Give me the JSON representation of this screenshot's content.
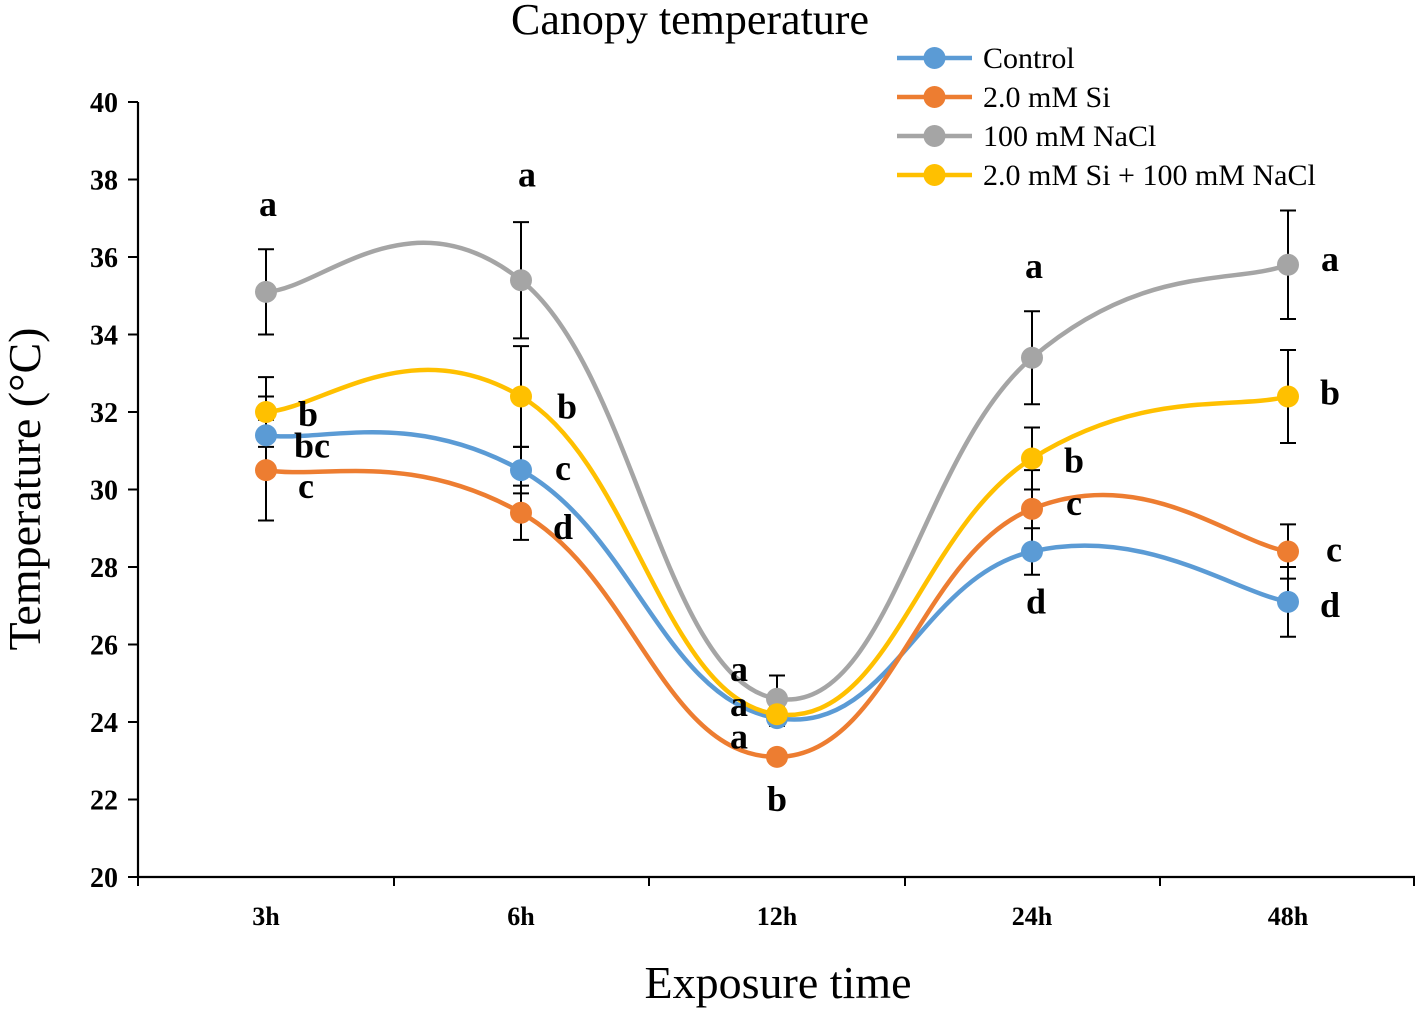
{
  "chart_data": {
    "type": "line",
    "title": "Canopy temperature",
    "xlabel": "Exposure time",
    "ylabel": "Temperature (°C)",
    "categories": [
      "3h",
      "6h",
      "12h",
      "24h",
      "48h"
    ],
    "ylim": [
      20,
      40
    ],
    "yticks": [
      "20",
      "22",
      "24",
      "26",
      "28",
      "30",
      "32",
      "34",
      "36",
      "38",
      "40"
    ],
    "grid": false,
    "smooth": true,
    "legend_position": "top-right",
    "series": [
      {
        "name": "Control",
        "color": "#5B9BD5",
        "values": [
          31.4,
          30.5,
          24.1,
          28.4,
          27.1
        ],
        "errors": [
          1.0,
          0.6,
          0.2,
          0.6,
          0.9
        ],
        "letters": [
          "bc",
          "c",
          "a",
          "d",
          "d"
        ]
      },
      {
        "name": "2.0 mM Si",
        "color": "#ED7D31",
        "values": [
          30.5,
          29.4,
          23.1,
          29.5,
          28.4
        ],
        "errors": [
          1.3,
          0.7,
          0.1,
          1.0,
          0.7
        ],
        "letters": [
          "c",
          "d",
          "b",
          "c",
          "c"
        ]
      },
      {
        "name": "100 mM NaCl",
        "color": "#A5A5A5",
        "values": [
          35.1,
          35.4,
          24.6,
          33.4,
          35.8
        ],
        "errors": [
          1.1,
          1.5,
          0.6,
          1.2,
          1.4
        ],
        "letters": [
          "a",
          "a",
          "a",
          "a",
          "a"
        ]
      },
      {
        "name": "2.0 mM Si + 100 mM NaCl",
        "color": "#FFC000",
        "values": [
          32.0,
          32.4,
          24.2,
          30.8,
          32.4
        ],
        "errors": [
          0.9,
          1.3,
          0.2,
          0.8,
          1.2
        ],
        "letters": [
          "b",
          "b",
          "a",
          "b",
          "b"
        ]
      }
    ]
  }
}
